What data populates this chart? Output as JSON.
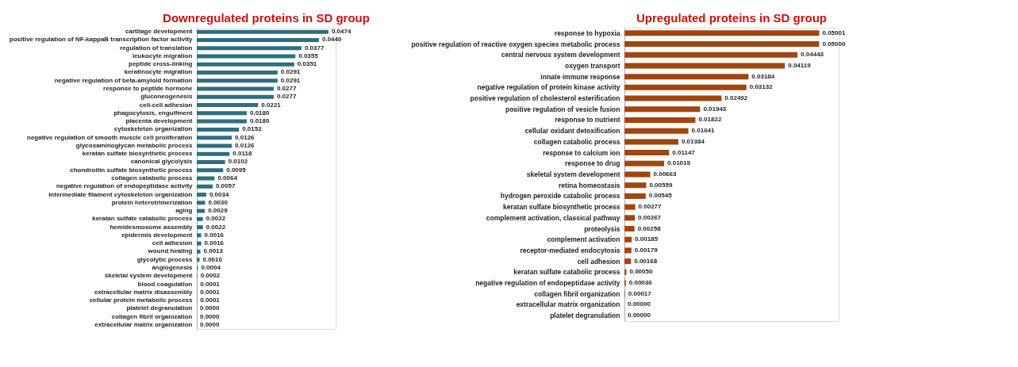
{
  "chart_data": [
    {
      "type": "bar",
      "orientation": "horizontal",
      "title": "Downregulated proteins in SD group",
      "color": "#2e6f80",
      "categories": [
        "cartilage development",
        "positive regulation of NF-kappaB transcription factor activity",
        "regulation of translation",
        "leukocyte migration",
        "peptide cross-linking",
        "keratinocyte migration",
        "negative regulation of beta-amyloid formation",
        "response to peptide hormone",
        "gluconeogenesis",
        "cell-cell adhesion",
        "phagocytosis, engulfment",
        "placenta development",
        "cytoskeleton organization",
        "negative regulation of smooth muscle cell proliferation",
        "glycosaminoglycan metabolic process",
        "keratan sulfate biosynthetic process",
        "canonical glycolysis",
        "chondroitin sulfate biosynthetic process",
        "collagen catabolic process",
        "negative regulation of endopeptidase activity",
        "intermediate filament cytoskeleton organization",
        "protein heterotrimerization",
        "aging",
        "keratan sulfate catabolic process",
        "hemidesmosome assembly",
        "epidermis development",
        "cell adhesion",
        "wound healing",
        "glycolytic process",
        "angiogenesis",
        "skeletal system development",
        "blood coagulation",
        "extracellular matrix disassembly",
        "cellular protein metabolic process",
        "platelet degranulation",
        "collagen fibril organization",
        "extracellular matrix organization"
      ],
      "values": [
        0.0474,
        0.044,
        0.0377,
        0.0355,
        0.0351,
        0.0291,
        0.0291,
        0.0277,
        0.0277,
        0.0221,
        0.018,
        0.018,
        0.0152,
        0.0126,
        0.0126,
        0.0118,
        0.0102,
        0.0095,
        0.0064,
        0.0057,
        0.0034,
        0.003,
        0.0029,
        0.0022,
        0.0022,
        0.0016,
        0.0016,
        0.0013,
        0.001,
        0.0004,
        0.0002,
        0.0001,
        0.0001,
        0.0001,
        0,
        0,
        0
      ],
      "value_labels": [
        "0.0474",
        "0.0440",
        "0.0377",
        "0.0355",
        "0.0351",
        "0.0291",
        "0.0291",
        "0.0277",
        "0.0277",
        "0.0221",
        "0.0180",
        "0.0180",
        "0.0152",
        "0.0126",
        "0.0126",
        "0.0118",
        "0.0102",
        "0.0095",
        "0.0064",
        "0.0057",
        "0.0034",
        "0.0030",
        "0.0029",
        "0.0022",
        "0.0022",
        "0.0016",
        "0.0016",
        "0.0013",
        "0.0010",
        "0.0004",
        "0.0002",
        "0.0001",
        "0.0001",
        "0.0001",
        "0.0000",
        "0.0000",
        "0.0000"
      ]
    },
    {
      "type": "bar",
      "orientation": "horizontal",
      "title": "Upregulated proteins in SD group",
      "color": "#a0460f",
      "categories": [
        "response to hypoxia",
        "positive regulation of reactive oxygen species metabolic process",
        "central nervous system development",
        "oxygen transport",
        "innate immune response",
        "negative regulation of protein kinase activity",
        "positive regulation of cholesterol esterification",
        "positive regulation of vesicle fusion",
        "response to nutrient",
        "cellular oxidant detoxification",
        "collagen catabolic process",
        "response to calcium ion",
        "response to drug",
        "skeletal system development",
        "retina homeostasis",
        "hydrogen peroxide catabolic process",
        "keratan sulfate biosynthetic process",
        "complement activation, classical pathway",
        "proteolysis",
        "complement activation",
        "receptor-mediated endocytosis",
        "cell adhesion",
        "keratan sulfate catabolic process",
        "negative regulation of endopeptidase activity",
        "collagen fibril organization",
        "extracellular matrix organization",
        "platelet degranulation"
      ],
      "values": [
        0.05001,
        0.05,
        0.04443,
        0.04119,
        0.03184,
        0.03132,
        0.02492,
        0.01943,
        0.01822,
        0.01641,
        0.01384,
        0.01147,
        0.01019,
        0.00663,
        0.00559,
        0.00545,
        0.00277,
        0.00267,
        0.00258,
        0.00185,
        0.00179,
        0.00168,
        0.0005,
        0.00036,
        0.00017,
        0,
        0
      ],
      "value_labels": [
        "0.05001",
        "0.05000",
        "0.04443",
        "0.04119",
        "0.03184",
        "0.03132",
        "0.02492",
        "0.01943",
        "0.01822",
        "0.01641",
        "0.01384",
        "0.01147",
        "0.01019",
        "0.00663",
        "0.00559",
        "0.00545",
        "0.00277",
        "0.00267",
        "0.00258",
        "0.00185",
        "0.00179",
        "0.00168",
        "0.00050",
        "0.00036",
        "0.00017",
        "0.00000",
        "0.00000"
      ]
    }
  ]
}
